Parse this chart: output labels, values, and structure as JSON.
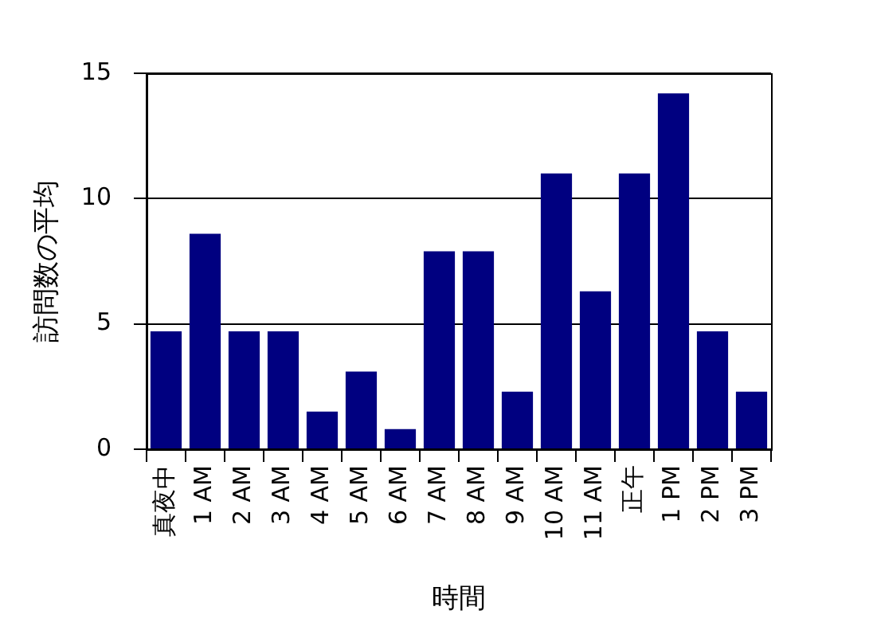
{
  "chart_data": {
    "type": "bar",
    "categories": [
      "真夜中",
      "1 AM",
      "2 AM",
      "3 AM",
      "4 AM",
      "5 AM",
      "6 AM",
      "7 AM",
      "8 AM",
      "9 AM",
      "10 AM",
      "11 AM",
      "正午",
      "1 PM",
      "2 PM",
      "3 PM"
    ],
    "values": [
      4.7,
      8.6,
      4.7,
      4.7,
      1.5,
      3.1,
      0.8,
      7.9,
      7.9,
      2.3,
      11,
      6.3,
      11,
      14.2,
      4.7,
      2.3
    ],
    "color": "#000080",
    "xlabel": "時間",
    "ylabel": "訪問数の平均",
    "ylim": [
      0,
      15
    ],
    "yticks": [
      0,
      5,
      10,
      15
    ],
    "grid": "y"
  }
}
